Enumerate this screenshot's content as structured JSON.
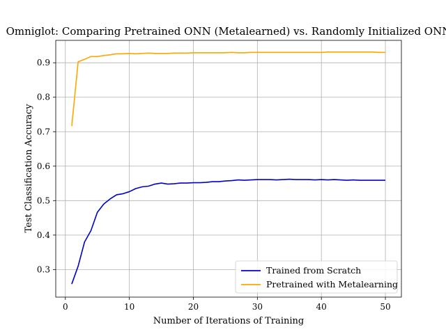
{
  "chart_data": {
    "type": "line",
    "title": "Omniglot: Comparing Pretrained ONN (Metalearned) vs. Randomly Initialized ONN",
    "xlabel": "Number of Iterations of Training",
    "ylabel": "Test Classification Accuracy",
    "xlim": [
      -1.5,
      52.5
    ],
    "ylim": [
      0.22,
      0.965
    ],
    "xticks": [
      0,
      10,
      20,
      30,
      40,
      50
    ],
    "yticks": [
      0.3,
      0.4,
      0.5,
      0.6,
      0.7,
      0.8,
      0.9
    ],
    "grid": true,
    "legend_position": "lower-right",
    "x": [
      1,
      2,
      3,
      4,
      5,
      6,
      7,
      8,
      9,
      10,
      11,
      12,
      13,
      14,
      15,
      16,
      17,
      18,
      19,
      20,
      21,
      22,
      23,
      24,
      25,
      26,
      27,
      28,
      29,
      30,
      31,
      32,
      33,
      34,
      35,
      36,
      37,
      38,
      39,
      40,
      41,
      42,
      43,
      44,
      45,
      46,
      47,
      48,
      49,
      50
    ],
    "series": [
      {
        "name": "Trained from Scratch",
        "color": "#0000cc",
        "values": [
          0.258,
          0.31,
          0.38,
          0.413,
          0.466,
          0.49,
          0.505,
          0.517,
          0.52,
          0.526,
          0.535,
          0.54,
          0.542,
          0.548,
          0.551,
          0.548,
          0.549,
          0.551,
          0.551,
          0.552,
          0.552,
          0.553,
          0.555,
          0.555,
          0.557,
          0.558,
          0.56,
          0.559,
          0.56,
          0.561,
          0.561,
          0.561,
          0.56,
          0.561,
          0.562,
          0.561,
          0.561,
          0.561,
          0.56,
          0.561,
          0.56,
          0.561,
          0.56,
          0.559,
          0.56,
          0.559,
          0.559,
          0.559,
          0.559,
          0.559
        ]
      },
      {
        "name": "Pretrained with Metalearning",
        "color": "#ffa500",
        "values": [
          0.716,
          0.903,
          0.91,
          0.918,
          0.918,
          0.921,
          0.923,
          0.926,
          0.926,
          0.927,
          0.926,
          0.927,
          0.928,
          0.927,
          0.927,
          0.927,
          0.928,
          0.928,
          0.928,
          0.929,
          0.929,
          0.929,
          0.929,
          0.929,
          0.929,
          0.93,
          0.929,
          0.929,
          0.93,
          0.93,
          0.93,
          0.93,
          0.93,
          0.93,
          0.93,
          0.93,
          0.93,
          0.93,
          0.93,
          0.93,
          0.931,
          0.931,
          0.931,
          0.931,
          0.931,
          0.931,
          0.931,
          0.931,
          0.93,
          0.93
        ]
      }
    ]
  }
}
